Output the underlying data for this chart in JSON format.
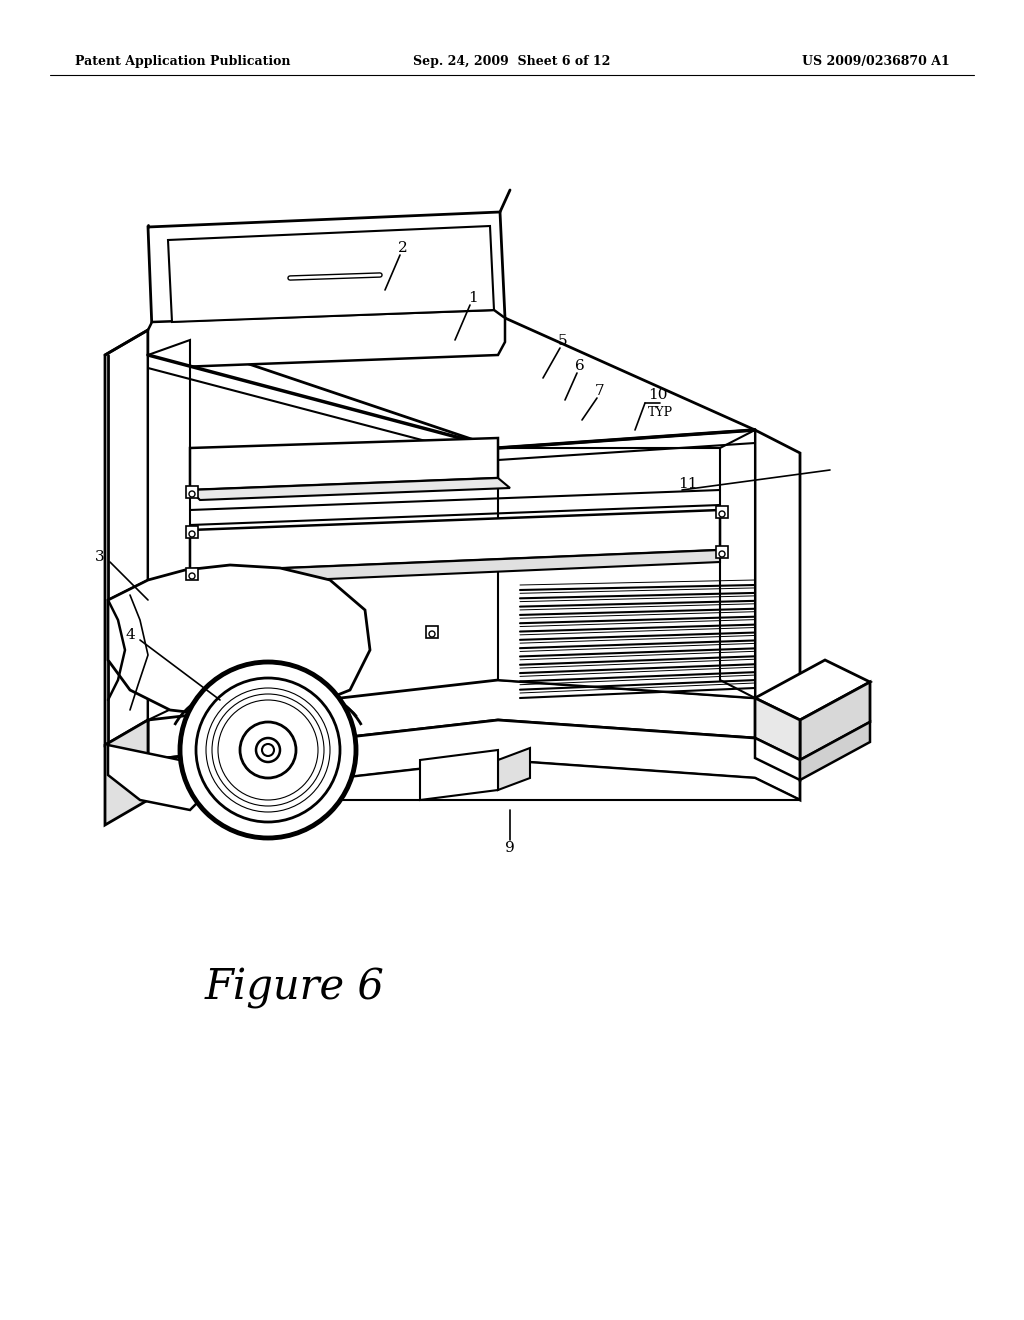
{
  "background_color": "#ffffff",
  "header_left": "Patent Application Publication",
  "header_center": "Sep. 24, 2009  Sheet 6 of 12",
  "header_right": "US 2009/0236870 A1",
  "figure_label": "Figure 6",
  "line_color": "#000000",
  "line_width": 1.8
}
